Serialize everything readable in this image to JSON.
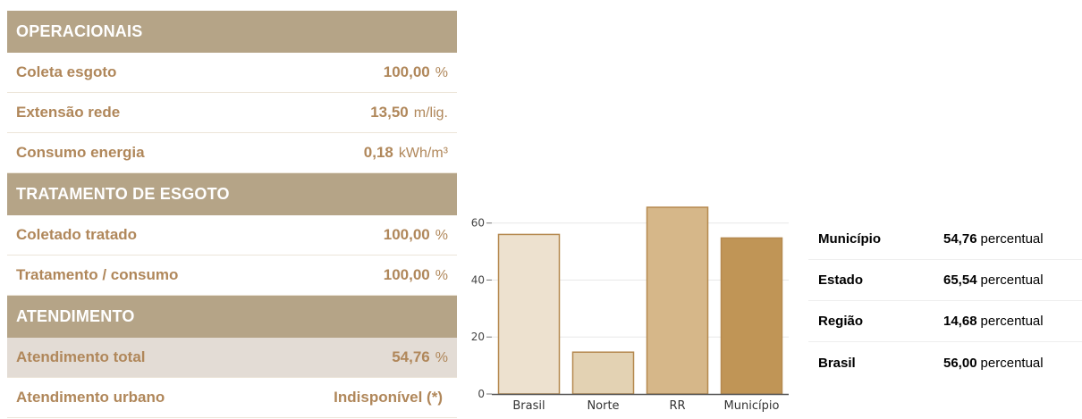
{
  "sections": [
    {
      "title": "OPERACIONAIS",
      "rows": [
        {
          "label": "Coleta esgoto",
          "value": "100,00",
          "unit": "%"
        },
        {
          "label": "Extensão rede",
          "value": "13,50",
          "unit": "m/lig."
        },
        {
          "label": "Consumo energia",
          "value": "0,18",
          "unit": "kWh/m³"
        }
      ]
    },
    {
      "title": "TRATAMENTO DE ESGOTO",
      "rows": [
        {
          "label": "Coletado tratado",
          "value": "100,00",
          "unit": "%"
        },
        {
          "label": "Tratamento / consumo",
          "value": "100,00",
          "unit": "%"
        }
      ]
    },
    {
      "title": "ATENDIMENTO",
      "rows": [
        {
          "label": "Atendimento total",
          "value": "54,76",
          "unit": "%",
          "highlighted": true
        },
        {
          "label": "Atendimento urbano",
          "value": "Indisponível (*)",
          "unit": ""
        }
      ]
    }
  ],
  "chart_data": {
    "type": "bar",
    "categories": [
      "Brasil",
      "Norte",
      "RR",
      "Município"
    ],
    "values": [
      56.0,
      14.68,
      65.54,
      54.76
    ],
    "ylim": [
      0,
      65.54
    ],
    "yticks": [
      0,
      20,
      40,
      60
    ],
    "colors": [
      "#ede1cf",
      "#e3d2b3",
      "#d6b789",
      "#c09556"
    ],
    "border_color": "#b5894f",
    "grid": true
  },
  "comparison": {
    "rows": [
      {
        "label": "Município",
        "value": "54,76",
        "unit": "percentual"
      },
      {
        "label": "Estado",
        "value": "65,54",
        "unit": "percentual"
      },
      {
        "label": "Região",
        "value": "14,68",
        "unit": "percentual"
      },
      {
        "label": "Brasil",
        "value": "56,00",
        "unit": "percentual"
      }
    ]
  }
}
